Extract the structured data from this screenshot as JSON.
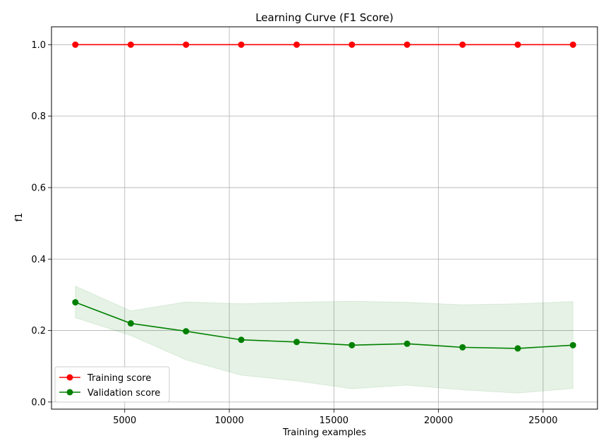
{
  "chart_data": {
    "type": "line",
    "title": "Learning Curve (F1 Score)",
    "xlabel": "Training examples",
    "ylabel": "f1",
    "xlim": [
      1500,
      27600
    ],
    "ylim": [
      -0.02,
      1.05
    ],
    "grid": true,
    "legend": "lower-left",
    "x_ticks": [
      5000,
      10000,
      15000,
      20000,
      25000
    ],
    "x_tick_labels": [
      "5000",
      "10000",
      "15000",
      "20000",
      "25000"
    ],
    "y_ticks": [
      0.0,
      0.2,
      0.4,
      0.6,
      0.8,
      1.0
    ],
    "y_tick_labels": [
      "0.0",
      "0.2",
      "0.4",
      "0.6",
      "0.8",
      "1.0"
    ],
    "x": [
      2640,
      5290,
      7930,
      10570,
      13220,
      15860,
      18500,
      21150,
      23790,
      26430
    ],
    "series": [
      {
        "name": "Training score",
        "color": "#ff0000",
        "values": [
          1.0,
          1.0,
          1.0,
          1.0,
          1.0,
          1.0,
          1.0,
          1.0,
          1.0,
          1.0
        ]
      },
      {
        "name": "Validation score",
        "color": "#008000",
        "values": [
          0.279,
          0.22,
          0.198,
          0.174,
          0.168,
          0.159,
          0.163,
          0.153,
          0.15,
          0.159
        ],
        "band_lower": [
          0.236,
          0.186,
          0.118,
          0.075,
          0.059,
          0.037,
          0.047,
          0.034,
          0.025,
          0.038
        ],
        "band_upper": [
          0.324,
          0.255,
          0.28,
          0.275,
          0.279,
          0.282,
          0.279,
          0.272,
          0.275,
          0.281
        ],
        "band_color": "#008000"
      }
    ]
  }
}
